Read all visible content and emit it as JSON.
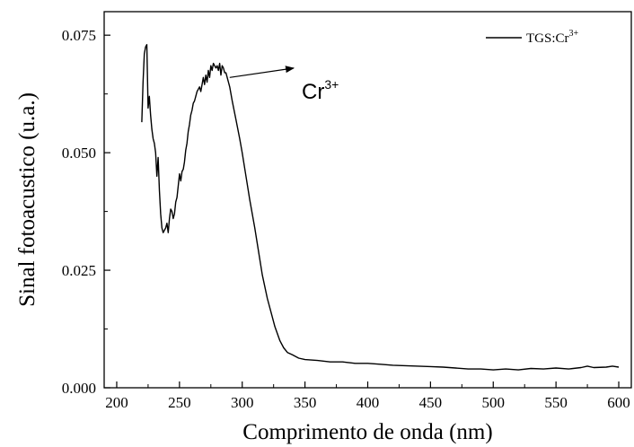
{
  "chart_data": {
    "type": "line",
    "title": "",
    "xlabel": "Comprimento de onda (nm)",
    "ylabel": "Sinal fotoacustico (u.a.)",
    "xlim": [
      190,
      610
    ],
    "ylim": [
      0,
      0.08
    ],
    "xticks": [
      "200",
      "250",
      "300",
      "350",
      "400",
      "450",
      "500",
      "550",
      "600"
    ],
    "yticks": [
      "0.000",
      "0.025",
      "0.050",
      "0.075"
    ],
    "grid": false,
    "legend_position": "top-right",
    "series": [
      {
        "name": "TGS:Cr",
        "name_superscript": "3+",
        "color": "#000000",
        "x": [
          220,
          221,
          222,
          223,
          224,
          225,
          226,
          227,
          228,
          229,
          230,
          231,
          232,
          233,
          234,
          235,
          236,
          237,
          238,
          239,
          240,
          241,
          242,
          243,
          244,
          245,
          246,
          247,
          248,
          249,
          250,
          251,
          252,
          253,
          254,
          255,
          256,
          257,
          258,
          259,
          260,
          261,
          262,
          263,
          264,
          265,
          266,
          267,
          268,
          269,
          270,
          271,
          272,
          273,
          274,
          275,
          276,
          277,
          278,
          279,
          280,
          281,
          282,
          283,
          284,
          285,
          286,
          287,
          288,
          290,
          292,
          295,
          298,
          300,
          303,
          306,
          310,
          313,
          316,
          320,
          323,
          326,
          330,
          333,
          336,
          340,
          345,
          350,
          360,
          370,
          380,
          390,
          400,
          410,
          420,
          430,
          440,
          450,
          460,
          470,
          480,
          490,
          500,
          510,
          520,
          530,
          540,
          550,
          560,
          570,
          575,
          580,
          590,
          595,
          600
        ],
        "values": [
          0.0565,
          0.065,
          0.071,
          0.0725,
          0.073,
          0.0595,
          0.062,
          0.058,
          0.055,
          0.053,
          0.052,
          0.05,
          0.045,
          0.049,
          0.042,
          0.037,
          0.034,
          0.033,
          0.0335,
          0.034,
          0.035,
          0.033,
          0.036,
          0.038,
          0.0375,
          0.036,
          0.037,
          0.0395,
          0.0405,
          0.043,
          0.0455,
          0.044,
          0.046,
          0.0465,
          0.048,
          0.0505,
          0.052,
          0.0545,
          0.056,
          0.058,
          0.059,
          0.0605,
          0.061,
          0.062,
          0.063,
          0.0635,
          0.064,
          0.063,
          0.0645,
          0.066,
          0.0645,
          0.0665,
          0.065,
          0.0675,
          0.066,
          0.0685,
          0.0675,
          0.069,
          0.0685,
          0.068,
          0.0685,
          0.0675,
          0.069,
          0.0665,
          0.0685,
          0.068,
          0.067,
          0.067,
          0.066,
          0.064,
          0.061,
          0.057,
          0.053,
          0.05,
          0.045,
          0.04,
          0.034,
          0.029,
          0.024,
          0.019,
          0.016,
          0.013,
          0.01,
          0.0085,
          0.0075,
          0.007,
          0.0063,
          0.006,
          0.0058,
          0.0055,
          0.0055,
          0.0052,
          0.0052,
          0.005,
          0.0048,
          0.0047,
          0.0046,
          0.0045,
          0.0044,
          0.0042,
          0.004,
          0.004,
          0.0038,
          0.004,
          0.0038,
          0.0041,
          0.004,
          0.0042,
          0.004,
          0.0043,
          0.0046,
          0.0043,
          0.0044,
          0.0046,
          0.0044
        ]
      }
    ],
    "annotations": [
      {
        "text": "Cr",
        "superscript": "3+",
        "arrow_from_x": 290,
        "arrow_from_y": 0.066,
        "arrow_to_x": 341,
        "arrow_to_y": 0.068
      }
    ]
  }
}
